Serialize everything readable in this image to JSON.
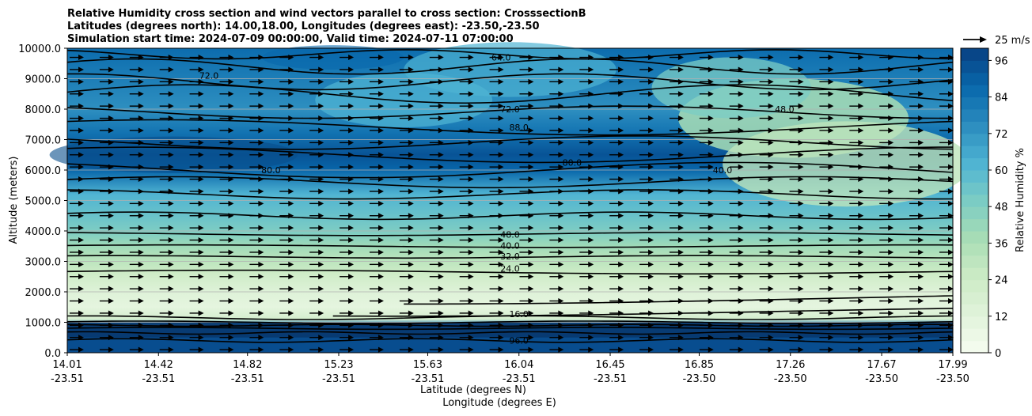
{
  "chart_data": {
    "type": "heatmap",
    "title_lines": [
      "Relative Humidity cross section and wind vectors parallel to cross section: CrosssectionB",
      "Latitudes (degrees north): 14.00,18.00, Longitudes (degrees east): -23.50,-23.50",
      "Simulation start time: 2024-07-09 00:00:00, Valid time: 2024-07-11 07:00:00"
    ],
    "ylabel": "Altitude (meters)",
    "xlabel_line1": "Latitude (degrees N)",
    "xlabel_line2": "Longitude (degrees E)",
    "ylim": [
      0,
      10000
    ],
    "y_ticks": [
      "0.0",
      "1000.0",
      "2000.0",
      "3000.0",
      "4000.0",
      "5000.0",
      "6000.0",
      "7000.0",
      "8000.0",
      "9000.0",
      "10000.0"
    ],
    "x_ticks": [
      {
        "lat": "14.01",
        "lon": "-23.51"
      },
      {
        "lat": "14.42",
        "lon": "-23.51"
      },
      {
        "lat": "14.82",
        "lon": "-23.51"
      },
      {
        "lat": "15.23",
        "lon": "-23.51"
      },
      {
        "lat": "15.63",
        "lon": "-23.51"
      },
      {
        "lat": "16.04",
        "lon": "-23.51"
      },
      {
        "lat": "16.45",
        "lon": "-23.51"
      },
      {
        "lat": "16.85",
        "lon": "-23.50"
      },
      {
        "lat": "17.26",
        "lon": "-23.50"
      },
      {
        "lat": "17.67",
        "lon": "-23.50"
      },
      {
        "lat": "17.99",
        "lon": "-23.50"
      }
    ],
    "grid": "horizontal lines at y ticks",
    "colorbar": {
      "label": "Relative Humidity %",
      "range": [
        0,
        100
      ],
      "ticks": [
        "0",
        "12",
        "24",
        "36",
        "48",
        "60",
        "72",
        "84",
        "96"
      ],
      "colormap": "GnBu"
    },
    "quiver_key": "25 m/s",
    "rh_profile": [
      {
        "alt": 0,
        "rh": 96
      },
      {
        "alt": 500,
        "rh": 96
      },
      {
        "alt": 900,
        "rh": 85
      },
      {
        "alt": 1100,
        "rh": 20
      },
      {
        "alt": 1500,
        "rh": 10
      },
      {
        "alt": 2000,
        "rh": 14
      },
      {
        "alt": 2600,
        "rh": 24
      },
      {
        "alt": 3100,
        "rh": 32
      },
      {
        "alt": 3500,
        "rh": 40
      },
      {
        "alt": 3900,
        "rh": 48
      },
      {
        "alt": 4500,
        "rh": 55
      },
      {
        "alt": 5200,
        "rh": 62
      },
      {
        "alt": 6000,
        "rh": 88
      },
      {
        "alt": 6500,
        "rh": 94
      },
      {
        "alt": 7200,
        "rh": 84
      },
      {
        "alt": 8000,
        "rh": 74
      },
      {
        "alt": 9000,
        "rh": 80
      },
      {
        "alt": 10000,
        "rh": 86
      }
    ],
    "contour_labels": [
      {
        "text": "96.0",
        "alt": 400,
        "pos": 0.51
      },
      {
        "text": "16.0",
        "alt": 1270,
        "pos": 0.51
      },
      {
        "text": "24.0",
        "alt": 2770,
        "pos": 0.5
      },
      {
        "text": "32.0",
        "alt": 3170,
        "pos": 0.5
      },
      {
        "text": "40.0",
        "alt": 3520,
        "pos": 0.5
      },
      {
        "text": "48.0",
        "alt": 3880,
        "pos": 0.5
      },
      {
        "text": "80.0",
        "alt": 6000,
        "pos": 0.23
      },
      {
        "text": "80.0",
        "alt": 6250,
        "pos": 0.57
      },
      {
        "text": "88.0",
        "alt": 7400,
        "pos": 0.51
      },
      {
        "text": "72.0",
        "alt": 8000,
        "pos": 0.5
      },
      {
        "text": "64.0",
        "alt": 9700,
        "pos": 0.49
      },
      {
        "text": "72.0",
        "alt": 9100,
        "pos": 0.16
      },
      {
        "text": "40.0",
        "alt": 6000,
        "pos": 0.74
      },
      {
        "text": "48.0",
        "alt": 8000,
        "pos": 0.81
      }
    ]
  }
}
